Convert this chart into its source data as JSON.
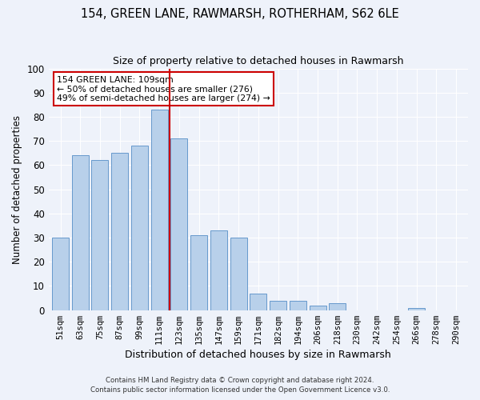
{
  "title": "154, GREEN LANE, RAWMARSH, ROTHERHAM, S62 6LE",
  "subtitle": "Size of property relative to detached houses in Rawmarsh",
  "xlabel": "Distribution of detached houses by size in Rawmarsh",
  "ylabel": "Number of detached properties",
  "categories": [
    "51sqm",
    "63sqm",
    "75sqm",
    "87sqm",
    "99sqm",
    "111sqm",
    "123sqm",
    "135sqm",
    "147sqm",
    "159sqm",
    "171sqm",
    "182sqm",
    "194sqm",
    "206sqm",
    "218sqm",
    "230sqm",
    "242sqm",
    "254sqm",
    "266sqm",
    "278sqm",
    "290sqm"
  ],
  "values": [
    30,
    64,
    62,
    65,
    68,
    83,
    71,
    31,
    33,
    30,
    7,
    4,
    4,
    2,
    3,
    0,
    0,
    0,
    1,
    0,
    0
  ],
  "bar_color": "#b8d0ea",
  "bar_edge_color": "#6699cc",
  "bg_color": "#eef2fa",
  "grid_color": "#ffffff",
  "vline_x": 5.5,
  "vline_color": "#cc0000",
  "annotation_text": "154 GREEN LANE: 109sqm\n← 50% of detached houses are smaller (276)\n49% of semi-detached houses are larger (274) →",
  "annotation_box_color": "#cc0000",
  "footer1": "Contains HM Land Registry data © Crown copyright and database right 2024.",
  "footer2": "Contains public sector information licensed under the Open Government Licence v3.0.",
  "ylim": [
    0,
    100
  ],
  "yticks": [
    0,
    10,
    20,
    30,
    40,
    50,
    60,
    70,
    80,
    90,
    100
  ],
  "title_fontsize": 10.5,
  "subtitle_fontsize": 9
}
